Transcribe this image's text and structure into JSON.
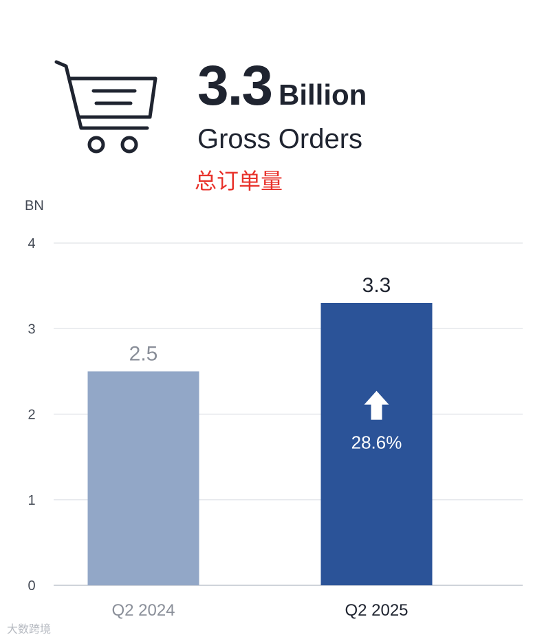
{
  "header": {
    "icon": "shopping-cart-icon",
    "value": "3.3",
    "unit": "Billion",
    "subtitle": "Gross Orders",
    "subtitle_cn": "总订单量"
  },
  "watermark": "大数跨境",
  "chart_data": {
    "type": "bar",
    "unit_label": "BN",
    "categories": [
      "Q2 2024",
      "Q2 2025"
    ],
    "values": [
      2.5,
      3.3
    ],
    "value_labels": [
      "2.5",
      "3.3"
    ],
    "ylim": [
      0,
      4
    ],
    "yticks": [
      0,
      1,
      2,
      3,
      4
    ],
    "grid": true,
    "colors": [
      "#92a7c7",
      "#2b5398"
    ],
    "category_label_colors": [
      "#8a8f99",
      "#1f2430"
    ],
    "value_label_colors": [
      "#8a8f99",
      "#1f2430"
    ],
    "annotation": {
      "bar_index": 1,
      "icon": "arrow-up-icon",
      "text": "28.6%",
      "color": "#ffffff"
    }
  }
}
